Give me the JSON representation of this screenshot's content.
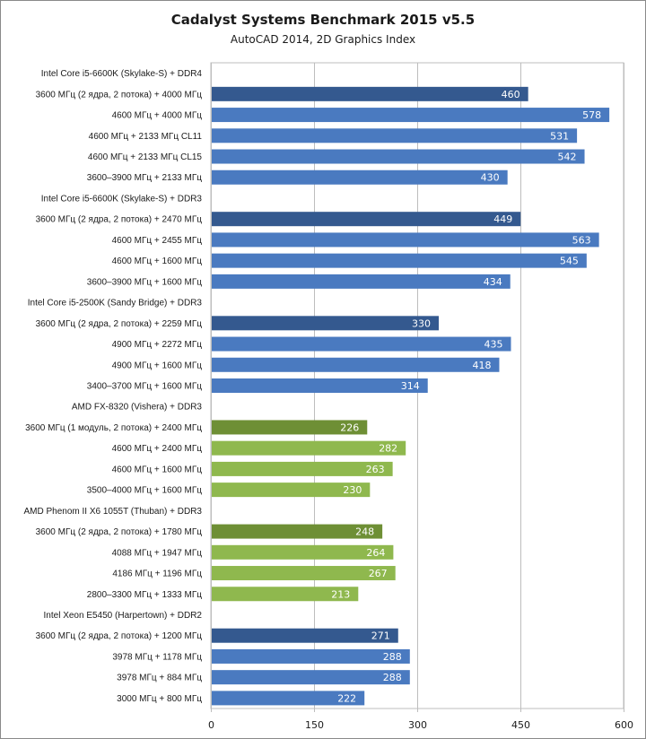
{
  "chart_data": {
    "type": "bar",
    "orientation": "horizontal",
    "title": "Cadalyst Systems Benchmark 2015 v5.5",
    "subtitle": "AutoCAD 2014, 2D Graphics Index",
    "xlim": [
      0,
      600
    ],
    "xticks": [
      0,
      150,
      300,
      450,
      600
    ],
    "grid": true,
    "colors": {
      "intel_highlight": "#34598f",
      "intel": "#4a7ac0",
      "amd_highlight": "#6e8f35",
      "amd": "#8fb84e"
    },
    "rows": [
      {
        "label": "Intel Core i5-6600K (Skylake-S) + DDR4",
        "group": true
      },
      {
        "label": "3600 МГц (2 ядра, 2 потока) + 4000 МГц",
        "value": 460,
        "color": "intel_highlight"
      },
      {
        "label": "4600 МГц + 4000 МГц",
        "value": 578,
        "color": "intel"
      },
      {
        "label": "4600 МГц + 2133 МГц CL11",
        "value": 531,
        "color": "intel"
      },
      {
        "label": "4600 МГц + 2133 МГц CL15",
        "value": 542,
        "color": "intel"
      },
      {
        "label": "3600–3900 МГц + 2133 МГц",
        "value": 430,
        "color": "intel"
      },
      {
        "label": "Intel Core i5-6600K (Skylake-S) + DDR3",
        "group": true
      },
      {
        "label": "3600 МГц (2 ядра, 2 потока) + 2470 МГц",
        "value": 449,
        "color": "intel_highlight"
      },
      {
        "label": "4600 МГц + 2455 МГц",
        "value": 563,
        "color": "intel"
      },
      {
        "label": "4600 МГц + 1600 МГц",
        "value": 545,
        "color": "intel"
      },
      {
        "label": "3600–3900 МГц + 1600 МГц",
        "value": 434,
        "color": "intel"
      },
      {
        "label": "Intel Core i5-2500K (Sandy Bridge) + DDR3",
        "group": true
      },
      {
        "label": "3600 МГц (2 ядра, 2 потока) + 2259 МГц",
        "value": 330,
        "color": "intel_highlight"
      },
      {
        "label": "4900 МГц + 2272 МГц",
        "value": 435,
        "color": "intel"
      },
      {
        "label": "4900 МГц + 1600 МГц",
        "value": 418,
        "color": "intel"
      },
      {
        "label": "3400–3700 МГц + 1600 МГц",
        "value": 314,
        "color": "intel"
      },
      {
        "label": "AMD FX-8320 (Vishera) + DDR3",
        "group": true
      },
      {
        "label": "3600 МГц (1 модуль, 2 потока) + 2400 МГц",
        "value": 226,
        "color": "amd_highlight"
      },
      {
        "label": "4600 МГц + 2400 МГц",
        "value": 282,
        "color": "amd"
      },
      {
        "label": "4600 МГц + 1600 МГц",
        "value": 263,
        "color": "amd"
      },
      {
        "label": "3500–4000 МГц + 1600 МГц",
        "value": 230,
        "color": "amd"
      },
      {
        "label": "AMD Phenom II X6 1055T (Thuban) + DDR3",
        "group": true
      },
      {
        "label": "3600 МГц (2 ядра, 2 потока) + 1780 МГц",
        "value": 248,
        "color": "amd_highlight"
      },
      {
        "label": "4088 МГц + 1947 МГц",
        "value": 264,
        "color": "amd"
      },
      {
        "label": "4186 МГц + 1196 МГц",
        "value": 267,
        "color": "amd"
      },
      {
        "label": "2800–3300 МГц + 1333 МГц",
        "value": 213,
        "color": "amd"
      },
      {
        "label": "Intel Xeon E5450 (Harpertown) + DDR2",
        "group": true
      },
      {
        "label": "3600 МГц (2 ядра, 2 потока) + 1200 МГц",
        "value": 271,
        "color": "intel_highlight"
      },
      {
        "label": "3978 МГц + 1178 МГц",
        "value": 288,
        "color": "intel"
      },
      {
        "label": "3978 МГц + 884 МГц",
        "value": 288,
        "color": "intel"
      },
      {
        "label": "3000 МГц + 800 МГц",
        "value": 222,
        "color": "intel"
      }
    ]
  }
}
